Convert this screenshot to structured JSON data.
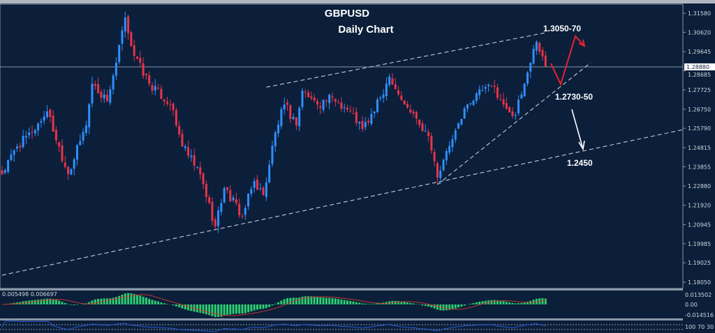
{
  "chart_data": {
    "type": "candlestick",
    "symbol": "GBPUSD",
    "title": "GBPUSD",
    "subtitle": "Daily Chart",
    "colors": {
      "background": "#0b1f3a",
      "up": "#2f8fff",
      "down": "#e8334a",
      "grid_frame": "#8a96a8",
      "macd_hist": "#2ecc71",
      "macd_signal": "#c0392b",
      "rsi": "#2a5bd7",
      "annotation_arrow": "#e8232e"
    },
    "price_axis": {
      "ticks": [
        "1.31580",
        "1.30620",
        "1.29645",
        "1.28685",
        "1.27725",
        "1.26750",
        "1.25790",
        "1.24815",
        "1.23855",
        "1.22880",
        "1.21920",
        "1.20945",
        "1.19985",
        "1.19025",
        "1.18050"
      ],
      "range": [
        1.1805,
        1.3158
      ]
    },
    "current_price": "1.28880",
    "price_path": [
      {
        "bar": 0,
        "close": 1.2348
      },
      {
        "bar": 5,
        "close": 1.2488
      },
      {
        "bar": 10,
        "close": 1.2559
      },
      {
        "bar": 15,
        "close": 1.2664
      },
      {
        "bar": 22,
        "close": 1.2348
      },
      {
        "bar": 28,
        "close": 1.2594
      },
      {
        "bar": 30,
        "close": 1.2804
      },
      {
        "bar": 35,
        "close": 1.2716
      },
      {
        "bar": 38,
        "close": 1.2909
      },
      {
        "bar": 41,
        "close": 1.3137
      },
      {
        "bar": 44,
        "close": 1.2944
      },
      {
        "bar": 49,
        "close": 1.2804
      },
      {
        "bar": 56,
        "close": 1.2699
      },
      {
        "bar": 60,
        "close": 1.2488
      },
      {
        "bar": 66,
        "close": 1.2348
      },
      {
        "bar": 71,
        "close": 1.2085
      },
      {
        "bar": 74,
        "close": 1.2278
      },
      {
        "bar": 80,
        "close": 1.2138
      },
      {
        "bar": 84,
        "close": 1.2313
      },
      {
        "bar": 87,
        "close": 1.2243
      },
      {
        "bar": 91,
        "close": 1.2559
      },
      {
        "bar": 94,
        "close": 1.2699
      },
      {
        "bar": 98,
        "close": 1.2594
      },
      {
        "bar": 100,
        "close": 1.2769
      },
      {
        "bar": 105,
        "close": 1.2699
      },
      {
        "bar": 110,
        "close": 1.2734
      },
      {
        "bar": 116,
        "close": 1.2664
      },
      {
        "bar": 120,
        "close": 1.2576
      },
      {
        "bar": 124,
        "close": 1.2664
      },
      {
        "bar": 129,
        "close": 1.2839
      },
      {
        "bar": 134,
        "close": 1.2699
      },
      {
        "bar": 138,
        "close": 1.2629
      },
      {
        "bar": 142,
        "close": 1.2541
      },
      {
        "bar": 145,
        "close": 1.2331
      },
      {
        "bar": 150,
        "close": 1.2524
      },
      {
        "bar": 155,
        "close": 1.2699
      },
      {
        "bar": 160,
        "close": 1.2769
      },
      {
        "bar": 164,
        "close": 1.2787
      },
      {
        "bar": 167,
        "close": 1.2699
      },
      {
        "bar": 171,
        "close": 1.2646
      },
      {
        "bar": 174,
        "close": 1.2804
      },
      {
        "bar": 177,
        "close": 1.2979
      },
      {
        "bar": 178,
        "close": 1.3014
      },
      {
        "bar": 181,
        "close": 1.2888
      }
    ],
    "trendlines": [
      {
        "name": "lower-channel",
        "from": {
          "bar": 0,
          "price": 1.184
        },
        "to": {
          "bar": 227,
          "price": 1.2573
        }
      },
      {
        "name": "upper-channel",
        "from": {
          "bar": 88,
          "price": 1.2786
        },
        "to": {
          "bar": 181,
          "price": 1.306
        }
      },
      {
        "name": "rising-support",
        "from": {
          "bar": 145,
          "price": 1.2296
        },
        "to": {
          "bar": 196,
          "price": 1.2909
        }
      }
    ],
    "annotations": [
      "1.3050-70",
      "1.2730-50",
      "1.2450"
    ],
    "macd": {
      "label": "0.005498 0.006697",
      "ticks": [
        "0.013502",
        "0.00",
        "-0.014516"
      ]
    },
    "rsi": {
      "ticks": [
        "100",
        "70",
        "30"
      ]
    }
  }
}
